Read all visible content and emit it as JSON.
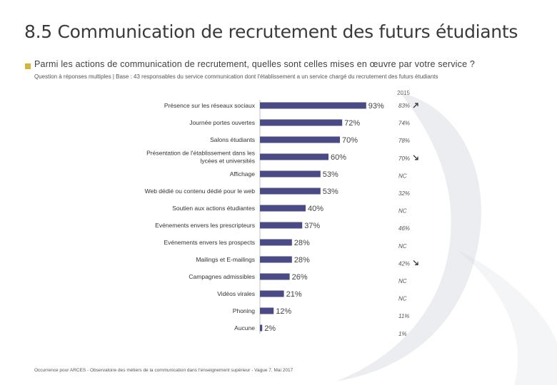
{
  "page": {
    "title": "8.5 Communication de recrutement des futurs étudiants",
    "question": "Parmi les actions de communication de recrutement, quelles sont celles mises en œuvre par votre service ?",
    "subtitle": "Question à réponses multiples | Base : 43 responsables du service communication dont l’établissement a un service chargé du recrutement des futurs étudiants",
    "footer": "Occurrence pour ARCES - Observatoire des métiers de la communication dans l’enseignement supérieur - Vague 7, Mai 2017"
  },
  "colors": {
    "bar": "#4a4a86",
    "accent": "#d7b43a",
    "swirl": "#c9ccd8"
  },
  "chart_data": {
    "type": "bar",
    "orientation": "horizontal",
    "unit": "%",
    "xlim": [
      0,
      100
    ],
    "grid": false,
    "categories": [
      "Présence sur les réseaux sociaux",
      "Journée portes ouvertes",
      "Salons étudiants",
      "Présentation de l'établissement dans les lycées et universités",
      "Affichage",
      "Web dédié ou contenu dédié pour le web",
      "Soutien aux actions étudiantes",
      "Evénements envers les prescripteurs",
      "Evénements envers les prospects",
      "Mailings et E-mailings",
      "Campagnes admissibles",
      "Vidéos virales",
      "Phoning",
      "Aucune"
    ],
    "category_lines": [
      [
        "Présence sur les réseaux sociaux"
      ],
      [
        "Journée portes ouvertes"
      ],
      [
        "Salons étudiants"
      ],
      [
        "Présentation de l'établissement dans les",
        "lycées et universités"
      ],
      [
        "Affichage"
      ],
      [
        "Web dédié ou contenu dédié pour le web"
      ],
      [
        "Soutien aux actions étudiantes"
      ],
      [
        "Evénements envers les prescripteurs"
      ],
      [
        "Evénements envers les prospects"
      ],
      [
        "Mailings et E-mailings"
      ],
      [
        "Campagnes admissibles"
      ],
      [
        "Vidéos virales"
      ],
      [
        "Phoning"
      ],
      [
        "Aucune"
      ]
    ],
    "values": [
      93,
      72,
      70,
      60,
      53,
      53,
      40,
      37,
      28,
      28,
      26,
      21,
      12,
      2
    ],
    "value_labels": [
      "93%",
      "72%",
      "70%",
      "60%",
      "53%",
      "53%",
      "40%",
      "37%",
      "28%",
      "28%",
      "26%",
      "21%",
      "12%",
      "2%"
    ],
    "comparison": {
      "label": "2015",
      "values": [
        "83%",
        "74%",
        "78%",
        "70%",
        "NC",
        "32%",
        "NC",
        "46%",
        "NC",
        "42%",
        "NC",
        "NC",
        "11%",
        "1%"
      ],
      "trend_icons": [
        "arrow-up-right-icon",
        null,
        null,
        "arrow-down-right-icon",
        null,
        null,
        null,
        null,
        null,
        "arrow-down-right-icon",
        null,
        null,
        null,
        null
      ]
    }
  }
}
